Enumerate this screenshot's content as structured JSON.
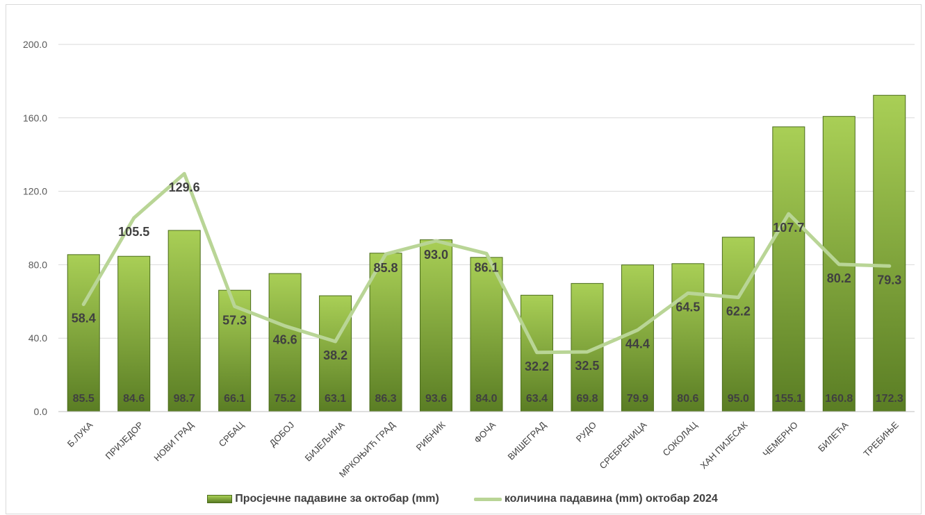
{
  "chart_data": {
    "type": "bar",
    "categories": [
      "Б.ЛУКА",
      "ПРИЈЕДОР",
      "НОВИ ГРАД",
      "СРБАЦ",
      "ДОБОЈ",
      "БИЈЕЉИНА",
      "МРКОЊИЋ ГРАД",
      "РИБНИК",
      "ФОЧА",
      "ВИШЕГРАД",
      "РУДО",
      "СРЕБРЕНИЦА",
      "СОКОЛАЦ",
      "ХАН ПИЈЕСАК",
      "ЧЕМЕРНО",
      "БИЛЕЋА",
      "ТРЕБИЊЕ"
    ],
    "series": [
      {
        "name": "Просјечне падавине за октобар (mm)",
        "type": "bar",
        "values": [
          85.5,
          84.6,
          98.7,
          66.1,
          75.2,
          63.1,
          86.3,
          93.6,
          84.0,
          63.4,
          69.8,
          79.9,
          80.6,
          95.0,
          155.1,
          160.8,
          172.3
        ],
        "labels": [
          "85.5",
          "84.6",
          "98.7",
          "66.1",
          "75.2",
          "63.1",
          "86.3",
          "93.6",
          "84.0",
          "63.4",
          "69.8",
          "79.9",
          "80.6",
          "95.0",
          "155.1",
          "160.8",
          "172.3"
        ]
      },
      {
        "name": "количина падавина (mm) октобар 2024",
        "type": "line",
        "values": [
          58.4,
          105.5,
          129.6,
          57.3,
          46.6,
          38.2,
          85.8,
          93.0,
          86.1,
          32.2,
          32.5,
          44.4,
          64.5,
          62.2,
          107.7,
          80.2,
          79.3
        ],
        "labels": [
          "58.4",
          "105.5",
          "129.6",
          "57.3",
          "46.6",
          "38.2",
          "85.8",
          "93.0",
          "86.1",
          "32.2",
          "32.5",
          "44.4",
          "64.5",
          "62.2",
          "107.7",
          "80.2",
          "79.3"
        ]
      }
    ],
    "yticks": [
      "0.0",
      "40.0",
      "80.0",
      "120.0",
      "160.0",
      "200.0"
    ],
    "ylim": [
      0,
      200
    ],
    "grid": true,
    "legend_position": "bottom",
    "colors": {
      "bar_top": "#a9cf56",
      "bar_bottom": "#5a7d24",
      "bar_border": "#4a6b1b",
      "line": "#b9d596",
      "grid": "#d9d9d9",
      "text": "#404040"
    }
  }
}
